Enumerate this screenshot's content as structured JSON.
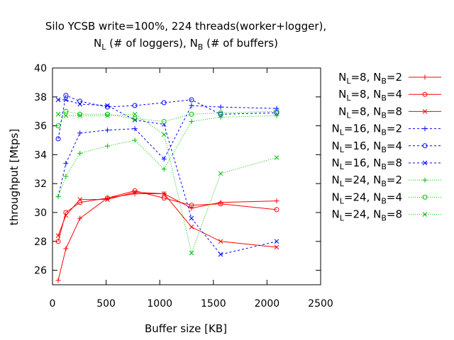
{
  "chart_data": {
    "type": "line",
    "title_line1": "Silo YCSB write=100%, 224 threads(worker+logger),",
    "title_line2_parts": [
      "N",
      "L",
      " (# of loggers), N",
      "B",
      " (# of buffers)"
    ],
    "xlabel": "Buffer size [KB]",
    "ylabel": "throughput [Mtps]",
    "xlim": [
      0,
      2500
    ],
    "ylim": [
      25,
      40
    ],
    "xticks": [
      0,
      500,
      1000,
      1500,
      2000,
      2500
    ],
    "yticks": [
      26,
      28,
      30,
      32,
      34,
      36,
      38,
      40
    ],
    "grid": false,
    "legend_position": "right",
    "series": [
      {
        "legend": {
          "nl": "8",
          "nb": "2"
        },
        "color": "#ff0000",
        "dash": "solid",
        "marker": "plus",
        "x": [
          53,
          125,
          256,
          512,
          768,
          1040,
          1296,
          1568,
          2090
        ],
        "y": [
          25.3,
          27.5,
          29.6,
          31.0,
          31.3,
          31.3,
          30.3,
          30.7,
          30.8
        ]
      },
      {
        "legend": {
          "nl": "8",
          "nb": "4"
        },
        "color": "#ff0000",
        "dash": "solid",
        "marker": "circle",
        "x": [
          53,
          125,
          256,
          512,
          768,
          1040,
          1296,
          1568,
          2090
        ],
        "y": [
          28.0,
          30.0,
          30.7,
          31.0,
          31.5,
          31.0,
          30.5,
          30.6,
          30.2
        ]
      },
      {
        "legend": {
          "nl": "8",
          "nb": "8"
        },
        "color": "#ff0000",
        "dash": "solid",
        "marker": "x",
        "x": [
          53,
          125,
          256,
          512,
          768,
          1040,
          1296,
          1568,
          2090
        ],
        "y": [
          28.4,
          29.8,
          30.9,
          30.9,
          31.4,
          31.3,
          29.0,
          28.0,
          27.6
        ]
      },
      {
        "legend": {
          "nl": "16",
          "nb": "2"
        },
        "color": "#0000ff",
        "dash": "dashed",
        "marker": "plus",
        "x": [
          53,
          125,
          256,
          512,
          768,
          1040,
          1296,
          1568,
          2090
        ],
        "y": [
          31.1,
          33.4,
          35.5,
          35.7,
          35.8,
          33.7,
          37.4,
          37.3,
          37.2
        ]
      },
      {
        "legend": {
          "nl": "16",
          "nb": "4"
        },
        "color": "#0000ff",
        "dash": "dashed",
        "marker": "circle",
        "x": [
          53,
          125,
          256,
          512,
          768,
          1040,
          1296,
          1568,
          2090
        ],
        "y": [
          35.1,
          38.1,
          37.7,
          37.3,
          37.4,
          37.6,
          37.8,
          36.8,
          36.9
        ]
      },
      {
        "legend": {
          "nl": "16",
          "nb": "8"
        },
        "color": "#0000ff",
        "dash": "dashed",
        "marker": "x",
        "x": [
          53,
          125,
          256,
          512,
          768,
          1040,
          1296,
          1568,
          2090
        ],
        "y": [
          37.8,
          37.8,
          37.5,
          37.4,
          36.4,
          36.1,
          29.6,
          27.1,
          28.0
        ]
      },
      {
        "legend": {
          "nl": "24",
          "nb": "2"
        },
        "color": "#00c000",
        "dash": "dotted",
        "marker": "plus",
        "x": [
          53,
          125,
          256,
          512,
          768,
          1040,
          1296,
          1568,
          2090
        ],
        "y": [
          31.1,
          32.5,
          34.1,
          34.6,
          35.0,
          33.0,
          36.3,
          36.6,
          36.7
        ]
      },
      {
        "legend": {
          "nl": "24",
          "nb": "4"
        },
        "color": "#00c000",
        "dash": "dotted",
        "marker": "circle",
        "x": [
          53,
          125,
          256,
          512,
          768,
          1040,
          1296,
          1568,
          2090
        ],
        "y": [
          36.0,
          37.0,
          36.8,
          36.8,
          36.5,
          36.3,
          36.8,
          36.9,
          37.0
        ]
      },
      {
        "legend": {
          "nl": "24",
          "nb": "8"
        },
        "color": "#00c000",
        "dash": "dotted",
        "marker": "x",
        "x": [
          53,
          125,
          256,
          512,
          768,
          1040,
          1296,
          1568,
          2090
        ],
        "y": [
          36.8,
          36.7,
          36.7,
          36.7,
          36.8,
          35.4,
          27.2,
          32.7,
          33.8
        ]
      }
    ]
  }
}
